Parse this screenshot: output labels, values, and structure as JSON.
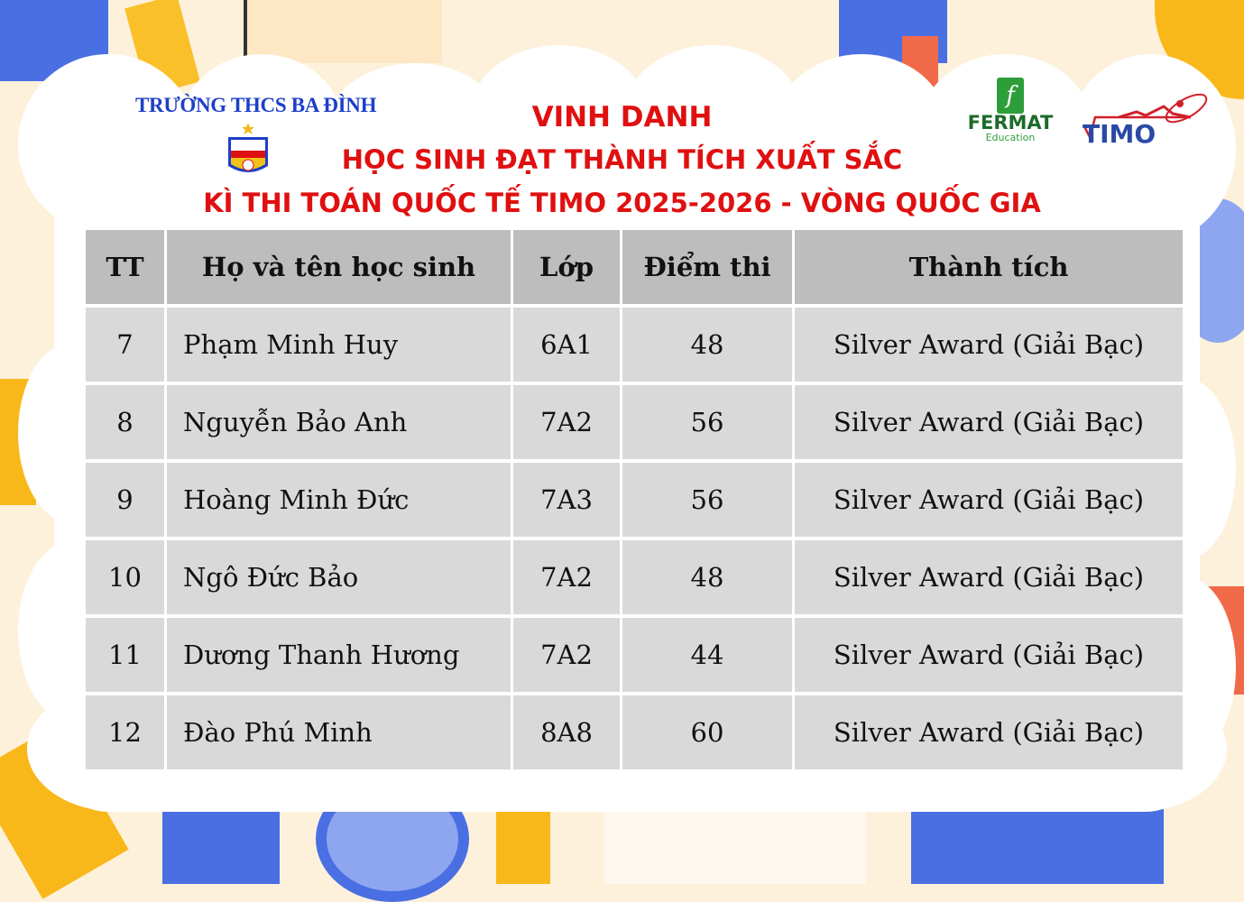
{
  "header": {
    "school_name": "TRƯỜNG THCS BA ĐÌNH",
    "title_line1": "VINH DANH",
    "title_line2": "HỌC SINH ĐẠT THÀNH TÍCH XUẤT SẮC",
    "title_line3": "KÌ THI TOÁN QUỐC TẾ TIMO 2025-2026 - VÒNG QUỐC GIA",
    "logos": {
      "school_crest": "BA ĐÌNH",
      "fermat_name": "FERMAT",
      "fermat_sub": "Education",
      "timo": "TIMO"
    }
  },
  "colors": {
    "title": "#e01010",
    "school": "#1e3fc8",
    "header_cell": "#bdbdbd",
    "row_cell": "#d9d9d9"
  },
  "table": {
    "columns": [
      "TT",
      "Họ và tên học sinh",
      "Lớp",
      "Điểm thi",
      "Thành tích"
    ],
    "rows": [
      {
        "tt": "7",
        "name": "Phạm Minh Huy",
        "class": "6A1",
        "score": "48",
        "award": "Silver Award (Giải Bạc)"
      },
      {
        "tt": "8",
        "name": "Nguyễn Bảo Anh",
        "class": "7A2",
        "score": "56",
        "award": "Silver Award (Giải Bạc)"
      },
      {
        "tt": "9",
        "name": "Hoàng Minh Đức",
        "class": "7A3",
        "score": "56",
        "award": "Silver Award (Giải Bạc)"
      },
      {
        "tt": "10",
        "name": "Ngô Đức Bảo",
        "class": "7A2",
        "score": "48",
        "award": "Silver Award (Giải Bạc)"
      },
      {
        "tt": "11",
        "name": "Dương Thanh Hương",
        "class": "7A2",
        "score": "44",
        "award": "Silver Award (Giải Bạc)"
      },
      {
        "tt": "12",
        "name": "Đào Phú Minh",
        "class": "8A8",
        "score": "60",
        "award": "Silver Award (Giải Bạc)"
      }
    ]
  }
}
